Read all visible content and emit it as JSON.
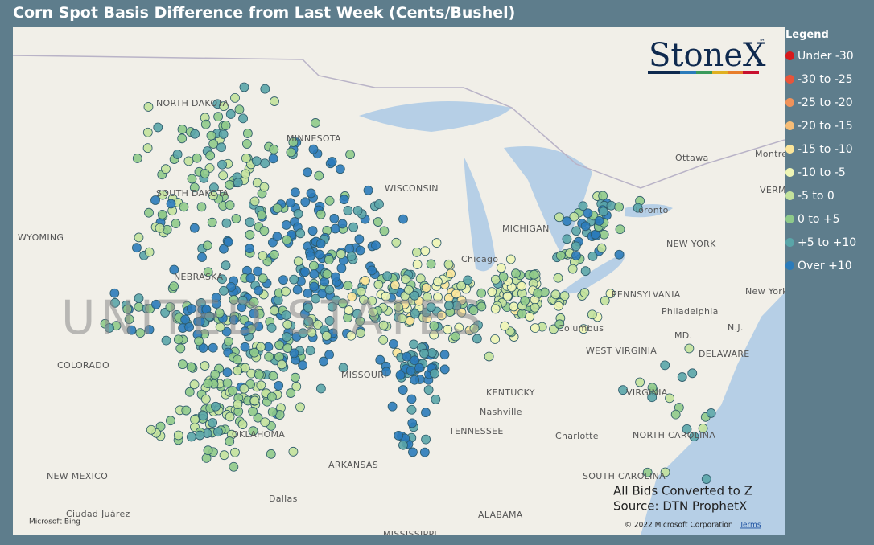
{
  "header": {
    "title": "Corn Spot Basis Difference from Last Week (Cents/Bushel)"
  },
  "logo": {
    "text": "StoneX",
    "mark": "™"
  },
  "legend": {
    "title": "Legend",
    "items": [
      {
        "label": "Under -30",
        "color": "#d7191c"
      },
      {
        "label": "-30 to -25",
        "color": "#e8553a"
      },
      {
        "label": "-25 to -20",
        "color": "#f0925a"
      },
      {
        "label": "-20 to -15",
        "color": "#f6bd77"
      },
      {
        "label": "-15 to -10",
        "color": "#fbe59a"
      },
      {
        "label": "-10 to -5",
        "color": "#eef5b5"
      },
      {
        "label": "-5 to 0",
        "color": "#c3e29c"
      },
      {
        "label": "0 to +5",
        "color": "#8fca8a"
      },
      {
        "label": "+5 to +10",
        "color": "#5aa5a8"
      },
      {
        "label": "Over +10",
        "color": "#2b7bba"
      }
    ]
  },
  "map": {
    "watermark": "UNITED STATES",
    "labels": [
      "NORTH DAKOTA",
      "SOUTH DAKOTA",
      "WYOMING",
      "NEBRASKA",
      "COLORADO",
      "MISSOURI",
      "KENTUCKY",
      "TENNESSEE",
      "OKLAHOMA",
      "ARKANSAS",
      "NEW MEXICO",
      "Dallas",
      "ALABAMA",
      "MISSISSIPPI",
      "Ciudad Juárez",
      "MINNESOTA",
      "WISCONSIN",
      "MICHIGAN",
      "Chicago",
      "PENNSYLVANIA",
      "NEW YORK",
      "Toronto",
      "Ottawa",
      "Montreal",
      "Philadelphia",
      "Columbus",
      "WEST VIRGINIA",
      "VIRGINIA",
      "NORTH CAROLINA",
      "Charlotte",
      "SOUTH CAROLINA",
      "Nashville",
      "N.J.",
      "MD.",
      "DELAWARE",
      "VERMONT",
      "New York"
    ]
  },
  "notes": {
    "line1": "All Bids Converted to Z",
    "line2": "Source: DTN ProphetX"
  },
  "footer": {
    "bing": "Microsoft Bing",
    "copyright": "© 2022 Microsoft Corporation",
    "terms": "Terms"
  }
}
